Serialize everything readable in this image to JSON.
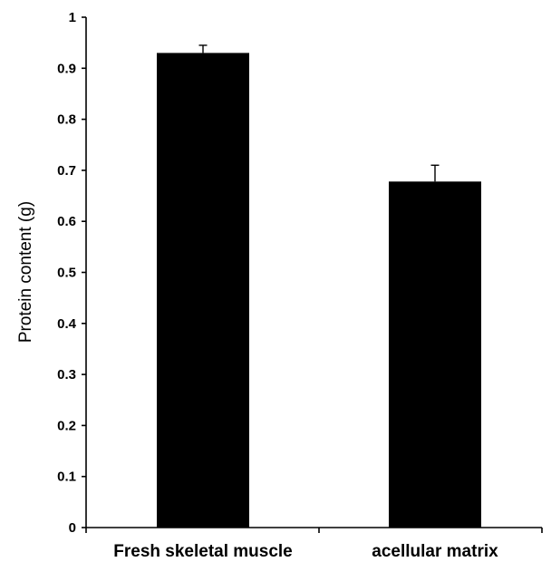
{
  "chart_data": {
    "type": "bar",
    "title": "",
    "xlabel": "",
    "ylabel": "Protein content (g)",
    "categories": [
      "Fresh skeletal muscle",
      "acellular matrix"
    ],
    "values": [
      0.93,
      0.678
    ],
    "error_plus": [
      0.015,
      0.032
    ],
    "ylim": [
      0,
      1
    ],
    "y_ticks": [
      0,
      0.1,
      0.2,
      0.3,
      0.4,
      0.5,
      0.6,
      0.7,
      0.8,
      0.9,
      1
    ],
    "y_tick_labels": [
      "0",
      "0.1",
      "0.2",
      "0.3",
      "0.4",
      "0.5",
      "0.6",
      "0.7",
      "0.8",
      "0.9",
      "1"
    ],
    "grid": false,
    "legend": "none",
    "colors": {
      "bar": "#000000",
      "axis": "#000000",
      "background": "#ffffff"
    }
  }
}
